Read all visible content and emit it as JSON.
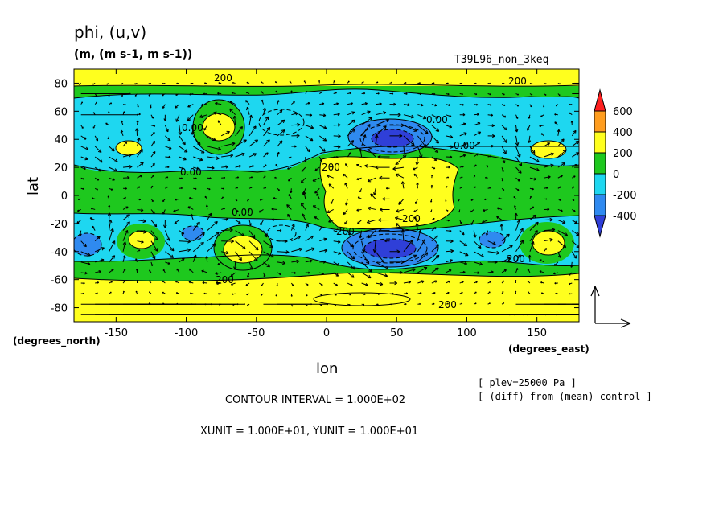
{
  "title": "phi, (u,v)",
  "units": "(m, (m s-1, m s-1))",
  "experiment": "T39L96_non_3keq",
  "chart_data": {
    "type": "contour",
    "xlabel": "lon",
    "ylabel": "lat",
    "x_unit_label": "(degrees_east)",
    "y_unit_label": "(degrees_north)",
    "xlim": [
      -180,
      180
    ],
    "ylim": [
      -90,
      90
    ],
    "x_ticks": [
      -150,
      -100,
      -50,
      0,
      50,
      100,
      150
    ],
    "y_ticks": [
      -80,
      -60,
      -40,
      -20,
      0,
      20,
      40,
      60,
      80
    ],
    "x_tick_labels": [
      "-150",
      "-100",
      "-50",
      "0",
      "50",
      "100",
      "150"
    ],
    "y_tick_labels": [
      "-80",
      "-60",
      "-40",
      "-20",
      "0",
      "20",
      "40",
      "60",
      "80"
    ],
    "colorbar": {
      "levels": [
        -400,
        -200,
        0,
        200,
        400,
        600
      ],
      "labels": [
        "600",
        "400",
        "200",
        "0",
        "-200",
        "-400"
      ],
      "colors": [
        "#2f3fd8",
        "#2f8af0",
        "#1ed7f0",
        "#1ec81e",
        "#ffff1e",
        "#ff9d1e",
        "#ff2020"
      ]
    },
    "contour_labels": [
      "200",
      "200",
      "0.00",
      "0.00",
      "0.00",
      "0.00",
      "0.00",
      "200",
      "200",
      "200",
      "200",
      "200",
      "200"
    ],
    "plev": "[ plev=25000 Pa ]",
    "diff_note": "[ (diff) from (mean) control ]",
    "contour_interval": "CONTOUR INTERVAL = 1.000E+02",
    "vector_units": "XUNIT = 1.000E+01, YUNIT = 1.000E+01",
    "features": [
      {
        "lon": 45,
        "lat": 38,
        "value": -500
      },
      {
        "lon": 45,
        "lat": -38,
        "value": -500
      },
      {
        "lon": -25,
        "lat": 40,
        "value": -200
      },
      {
        "lon": -130,
        "lat": 42,
        "value": -150
      },
      {
        "lon": 120,
        "lat": 40,
        "value": -150
      },
      {
        "lon": -165,
        "lat": -35,
        "value": -250
      },
      {
        "lon": -100,
        "lat": -28,
        "value": -250
      },
      {
        "lon": -35,
        "lat": -28,
        "value": -200
      },
      {
        "lon": 120,
        "lat": -32,
        "value": -250
      },
      {
        "lon": -80,
        "lat": 45,
        "value": 300
      },
      {
        "lon": -145,
        "lat": 33,
        "value": 260
      },
      {
        "lon": 150,
        "lat": 33,
        "value": 260
      },
      {
        "lon": -80,
        "lat": -38,
        "value": 300
      },
      {
        "lon": -138,
        "lat": -31,
        "value": 260
      },
      {
        "lon": 155,
        "lat": -34,
        "value": 260
      },
      {
        "lon": 45,
        "lat": 5,
        "value": 230
      },
      {
        "lon": 0,
        "lat": 0,
        "value": 230
      }
    ]
  }
}
